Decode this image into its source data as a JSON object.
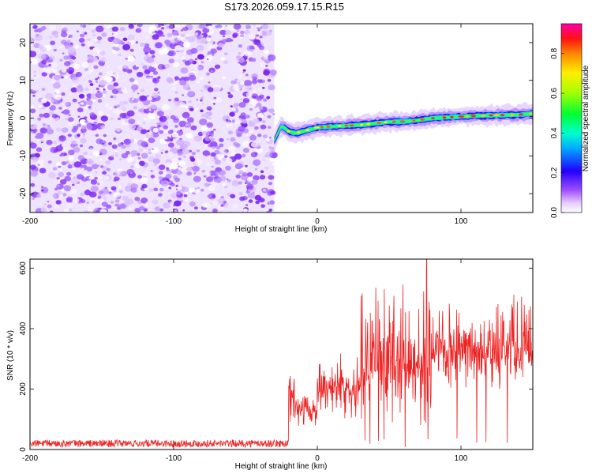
{
  "title": "S173.2026.059.17.15.R15",
  "chart_data": [
    {
      "type": "heatmap",
      "name": "spectrogram",
      "xlabel": "Height of straight line (km)",
      "ylabel": "Frequency (Hz)",
      "xlim": [
        -200,
        150
      ],
      "ylim": [
        -25,
        25
      ],
      "x_ticks": [
        -200,
        -100,
        0,
        100
      ],
      "y_ticks": [
        -20,
        -10,
        0,
        10,
        20
      ],
      "noise_region_x": [
        -200,
        -30
      ],
      "signal_onset_x": -30,
      "signal_ridge": {
        "x": [
          -30,
          -25,
          -20,
          -15,
          -10,
          -5,
          0,
          10,
          20,
          30,
          40,
          50,
          60,
          70,
          80,
          90,
          100,
          110,
          120,
          130,
          140,
          150
        ],
        "frequency": [
          -6,
          -2,
          -3.5,
          -4,
          -3.5,
          -3,
          -2.5,
          -2.2,
          -2,
          -1.8,
          -1.4,
          -1,
          -0.9,
          -0.6,
          0,
          0.2,
          0.4,
          0.6,
          0.7,
          0.8,
          0.9,
          1.2
        ]
      },
      "colorbar": {
        "label": "Normalized spectral amplitude",
        "range": [
          0,
          0.95
        ],
        "ticks": [
          "0.0",
          "0.2",
          "0.4",
          "0.6",
          "0.8"
        ]
      }
    },
    {
      "type": "line",
      "name": "snr",
      "xlabel": "Height of straight line (km)",
      "ylabel": "SNR (10 * v/v)",
      "xlim": [
        -200,
        150
      ],
      "ylim": [
        0,
        630
      ],
      "x_ticks": [
        -200,
        -100,
        0,
        100
      ],
      "y_ticks": [
        0,
        200,
        400,
        600
      ],
      "color": "#ee2222",
      "segments": [
        {
          "x": [
            -200,
            -18
          ],
          "baseline": 20,
          "spread": 12
        },
        {
          "x": [
            -18,
            0
          ],
          "baseline": 130,
          "spread": 60
        },
        {
          "x": [
            0,
            30
          ],
          "baseline": 210,
          "spread": 110
        },
        {
          "x": [
            30,
            80
          ],
          "baseline": 270,
          "spread": 230
        },
        {
          "x": [
            80,
            150
          ],
          "baseline": 330,
          "spread": 140
        }
      ],
      "peak": {
        "x": 76,
        "y": 630
      }
    }
  ]
}
